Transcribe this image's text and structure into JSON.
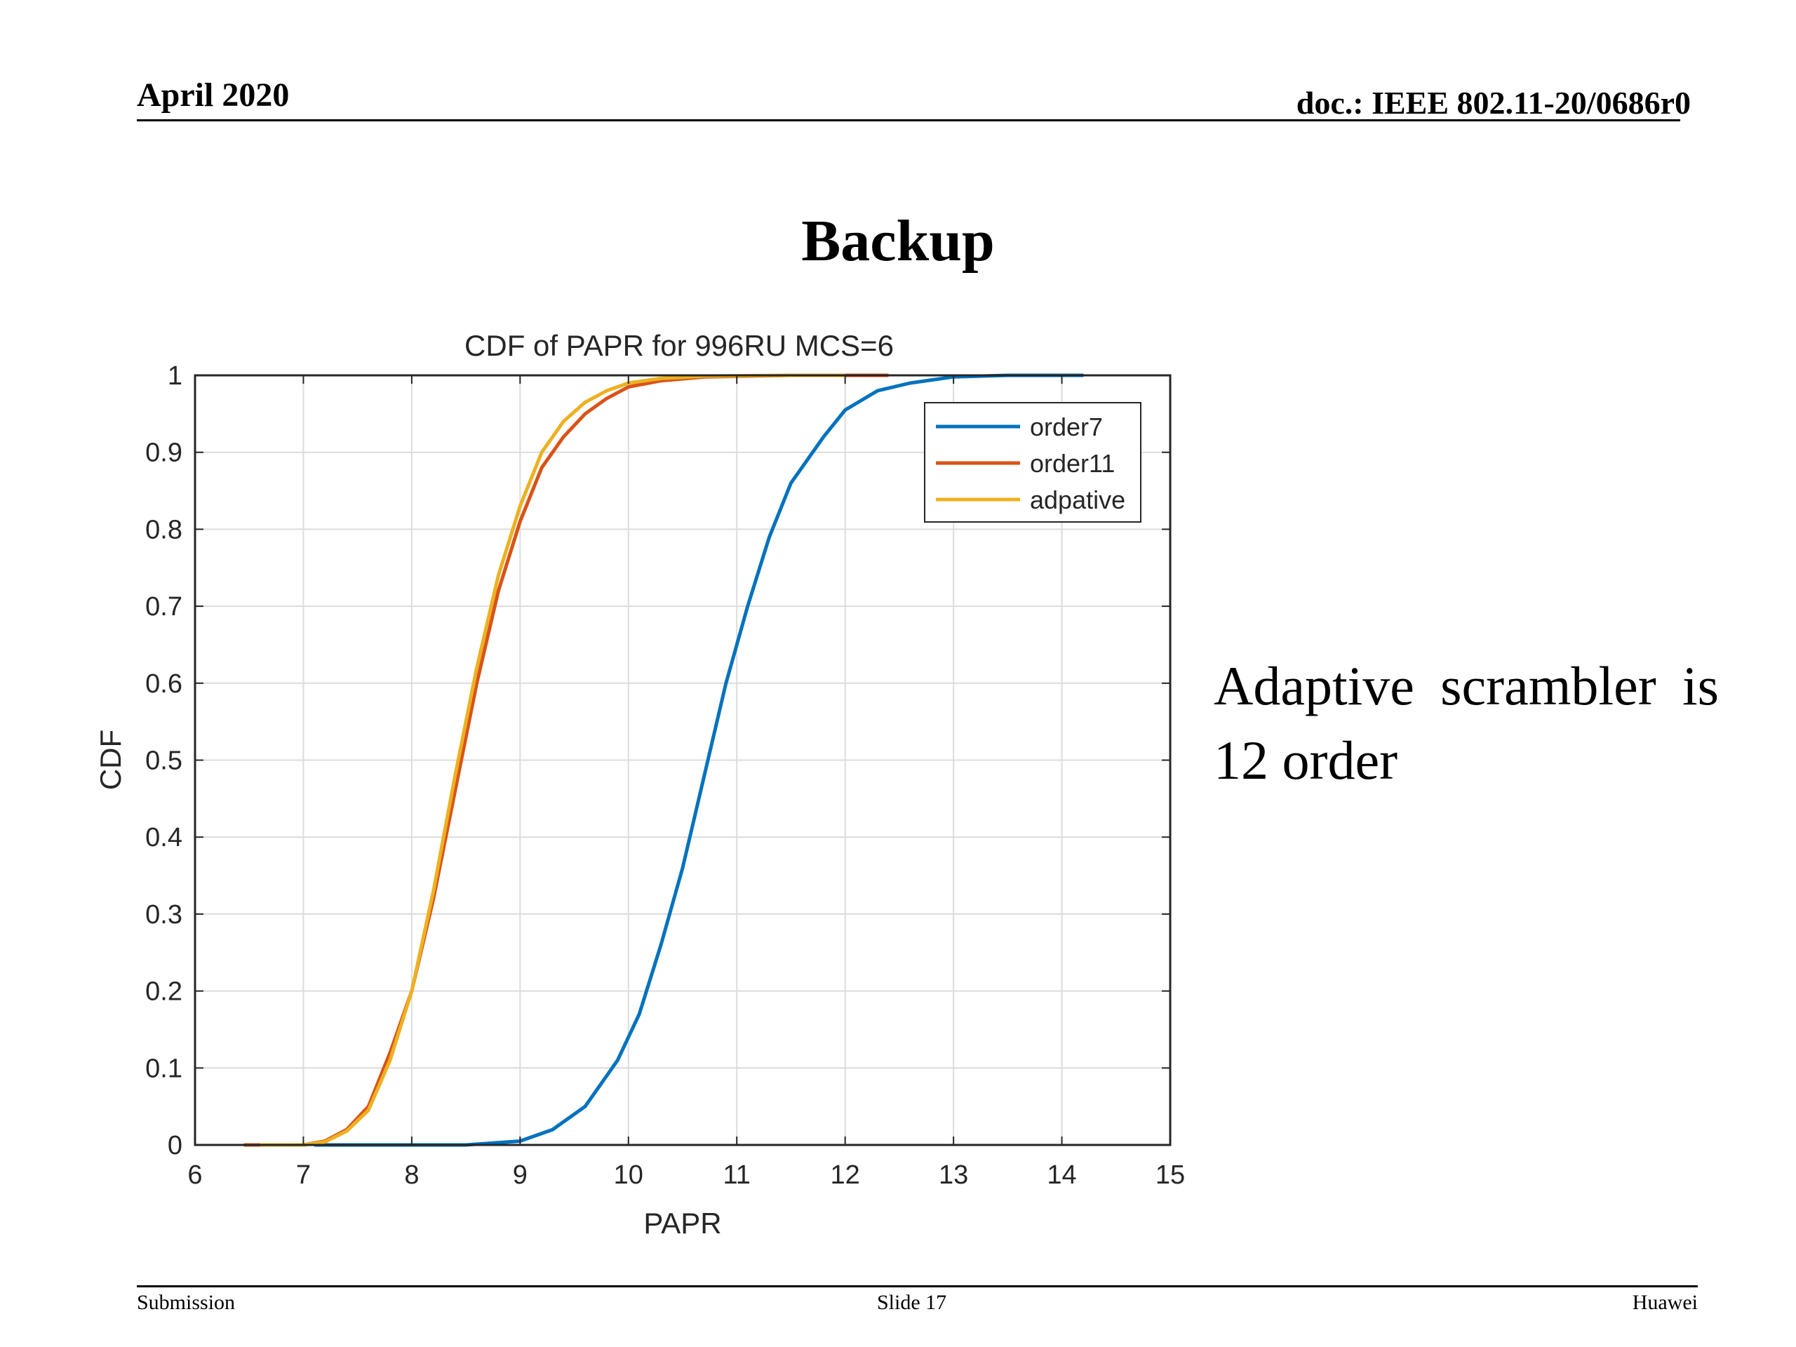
{
  "header": {
    "date": "April 2020",
    "doc": "doc.: IEEE 802.11-20/0686r0"
  },
  "slide": {
    "title": "Backup",
    "note": "Adaptive  scrambler is 12 order"
  },
  "footer": {
    "left": "Submission",
    "center": "Slide 17",
    "right": "Huawei"
  },
  "chart_data": {
    "type": "line",
    "title": "CDF of PAPR for 996RU MCS=6",
    "xlabel": "PAPR",
    "ylabel": "CDF",
    "xlim": [
      6,
      15
    ],
    "ylim": [
      0,
      1
    ],
    "xticks": [
      6,
      7,
      8,
      9,
      10,
      11,
      12,
      13,
      14,
      15
    ],
    "yticks": [
      0,
      0.1,
      0.2,
      0.3,
      0.4,
      0.5,
      0.6,
      0.7,
      0.8,
      0.9,
      1
    ],
    "grid": true,
    "legend_position": "top-right",
    "series": [
      {
        "name": "order7",
        "color": "#0072BD",
        "x": [
          7.1,
          8.5,
          9.0,
          9.3,
          9.6,
          9.9,
          10.1,
          10.3,
          10.5,
          10.7,
          10.9,
          11.1,
          11.3,
          11.5,
          11.8,
          12.0,
          12.3,
          12.6,
          13.0,
          13.5,
          14.2
        ],
        "y": [
          0,
          0,
          0.005,
          0.02,
          0.05,
          0.11,
          0.17,
          0.26,
          0.36,
          0.48,
          0.6,
          0.7,
          0.79,
          0.86,
          0.92,
          0.955,
          0.98,
          0.99,
          0.998,
          1,
          1
        ]
      },
      {
        "name": "order11",
        "color": "#D95319",
        "x": [
          6.45,
          7.0,
          7.2,
          7.4,
          7.6,
          7.8,
          8.0,
          8.2,
          8.4,
          8.6,
          8.8,
          9.0,
          9.2,
          9.4,
          9.6,
          9.8,
          10.0,
          10.3,
          10.7,
          11.5,
          12.4
        ],
        "y": [
          0,
          0,
          0.005,
          0.02,
          0.05,
          0.12,
          0.2,
          0.32,
          0.46,
          0.6,
          0.72,
          0.81,
          0.88,
          0.92,
          0.95,
          0.97,
          0.985,
          0.993,
          0.998,
          1,
          1
        ]
      },
      {
        "name": "adpative",
        "color": "#EDB120",
        "x": [
          6.6,
          7.0,
          7.2,
          7.4,
          7.6,
          7.8,
          8.0,
          8.2,
          8.4,
          8.6,
          8.8,
          9.0,
          9.2,
          9.4,
          9.6,
          9.8,
          10.0,
          10.3,
          10.7,
          11.5,
          12.0
        ],
        "y": [
          0,
          0,
          0.004,
          0.018,
          0.045,
          0.11,
          0.2,
          0.33,
          0.48,
          0.62,
          0.74,
          0.83,
          0.9,
          0.94,
          0.965,
          0.98,
          0.99,
          0.996,
          0.999,
          1,
          1
        ]
      }
    ]
  }
}
